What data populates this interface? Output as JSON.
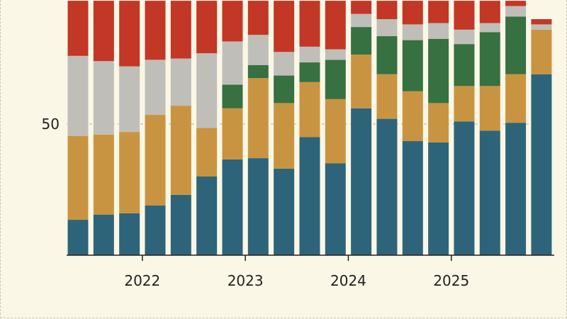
{
  "chart_data": {
    "type": "bar",
    "stacked": true,
    "categories": [
      "2021 Q2",
      "2021 Q3",
      "2021 Q4",
      "2022 Q1",
      "2022 Q2",
      "2022 Q3",
      "2022 Q4",
      "2023 Q1",
      "2023 Q2",
      "2023 Q3",
      "2023 Q4",
      "2024 Q1",
      "2024 Q2",
      "2024 Q3",
      "2024 Q4",
      "2025 Q1",
      "2025 Q2",
      "2025 Q3",
      "2025 Q4"
    ],
    "x_tick_labels": [
      "2022",
      "2023",
      "2024",
      "2025"
    ],
    "y_tick_labels": [
      "50"
    ],
    "ylim": [
      0,
      97
    ],
    "grid": "horizontal dashed at 50",
    "series": [
      {
        "color": "#2e6479",
        "values": [
          13.5,
          15.5,
          16,
          19,
          23,
          30,
          36.5,
          37,
          33,
          45,
          35,
          56,
          52,
          43.5,
          43,
          51,
          47.5,
          50.5,
          69
        ]
      },
      {
        "color": "#c99441",
        "values": [
          32,
          30.5,
          31,
          34.5,
          34,
          18.5,
          19.5,
          30.5,
          25,
          21,
          24.5,
          20.5,
          17,
          19,
          15,
          13.5,
          17,
          18.5,
          17
        ]
      },
      {
        "color": "#377041",
        "values": [
          0,
          0,
          0,
          0,
          0,
          0,
          9,
          5,
          10.5,
          7.5,
          15,
          10.5,
          14.5,
          19.5,
          24.5,
          16,
          20.5,
          22,
          0
        ]
      },
      {
        "color": "#c0beb8",
        "values": [
          30.5,
          28,
          25,
          21,
          18,
          28.5,
          16.5,
          11.5,
          9,
          6,
          4,
          5,
          6.5,
          6,
          6,
          5.5,
          3.5,
          4,
          2
        ]
      },
      {
        "color": "#c23726",
        "values": [
          21,
          23,
          25,
          22.5,
          22,
          20,
          15.5,
          13,
          19.5,
          17.5,
          18.5,
          5,
          7,
          9,
          8.5,
          11,
          8.5,
          2,
          2
        ]
      }
    ]
  }
}
